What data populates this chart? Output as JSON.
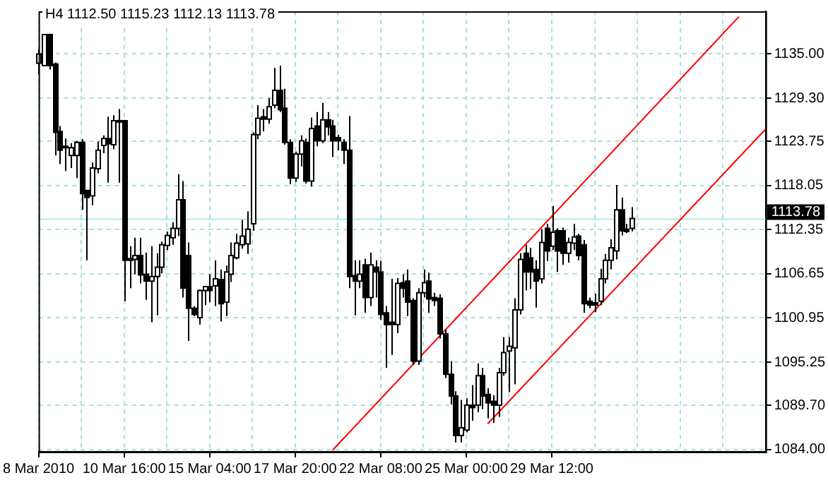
{
  "chart_data": {
    "type": "candlestick",
    "title": "H4 1112.50 1115.23 1112.13 1113.78",
    "color": "#000000",
    "categories": [
      "8 Mar 2010",
      null,
      null,
      null,
      null,
      null,
      null,
      null,
      null,
      null,
      null,
      null,
      null,
      null,
      null,
      null,
      "10 Mar 16:00",
      null,
      null,
      null,
      null,
      null,
      null,
      null,
      null,
      null,
      null,
      null,
      null,
      null,
      null,
      null,
      "15 Mar 04:00",
      null,
      null,
      null,
      null,
      null,
      null,
      null,
      null,
      null,
      null,
      null,
      null,
      null,
      null,
      null,
      "17 Mar 20:00",
      null,
      null,
      null,
      null,
      null,
      null,
      null,
      null,
      null,
      null,
      null,
      null,
      null,
      null,
      null,
      "22 Mar 08:00",
      null,
      null,
      null,
      null,
      null,
      null,
      null,
      null,
      null,
      null,
      null,
      null,
      null,
      null,
      null,
      "25 Mar 00:00",
      null,
      null,
      null,
      null,
      null,
      null,
      null,
      null,
      null,
      null,
      null,
      null,
      null,
      null,
      null,
      "29 Mar 12:00",
      null,
      null,
      null,
      null,
      null,
      null,
      null,
      null,
      null,
      null,
      null,
      null,
      null,
      null,
      null,
      null,
      null,
      null,
      null,
      null,
      null,
      null,
      null,
      null,
      null,
      null,
      null,
      null,
      null,
      null,
      null,
      null,
      null,
      null,
      null,
      null,
      null,
      null,
      null,
      null
    ],
    "ohlc": [
      [
        1133.8,
        1135.6,
        1132.4,
        1135.0
      ],
      [
        1133.5,
        1137.5,
        1133.5,
        1137.5
      ],
      [
        1137.5,
        1137.6,
        1133.0,
        1133.5
      ],
      [
        1133.7,
        1133.9,
        1121.9,
        1124.9
      ],
      [
        1125.0,
        1125.7,
        1120.8,
        1122.6
      ],
      [
        1122.9,
        1124.1,
        1119.9,
        1123.1
      ],
      [
        1121.9,
        1123.5,
        1120.3,
        1122.9
      ],
      [
        1121.9,
        1123.8,
        1119.0,
        1123.6
      ],
      [
        1123.6,
        1124.0,
        1114.9,
        1117.0
      ],
      [
        1117.4,
        1117.4,
        1108.4,
        1116.5
      ],
      [
        1116.7,
        1121.0,
        1115.5,
        1120.3
      ],
      [
        1120.2,
        1123.7,
        1119.6,
        1122.6
      ],
      [
        1123.2,
        1124.5,
        1122.2,
        1124.1
      ],
      [
        1124.1,
        1126.9,
        1118.4,
        1123.4
      ],
      [
        1123.3,
        1127.1,
        1122.7,
        1126.4
      ],
      [
        1126.3,
        1127.9,
        1118.4,
        1126.4
      ],
      [
        1126.4,
        1126.4,
        1103.1,
        1108.4
      ],
      [
        1108.4,
        1110.2,
        1104.8,
        1108.6
      ],
      [
        1108.5,
        1111.3,
        1106.6,
        1109.0
      ],
      [
        1109.0,
        1111.3,
        1105.4,
        1106.5
      ],
      [
        1106.6,
        1109.4,
        1103.3,
        1105.7
      ],
      [
        1105.7,
        1110.2,
        1100.4,
        1106.3
      ],
      [
        1106.3,
        1109.3,
        1101.3,
        1107.5
      ],
      [
        1107.5,
        1110.8,
        1106.7,
        1110.4
      ],
      [
        1110.3,
        1112.1,
        1109.7,
        1111.6
      ],
      [
        1111.3,
        1113.3,
        1110.4,
        1112.5
      ],
      [
        1112.5,
        1119.5,
        1111.5,
        1116.2
      ],
      [
        1116.2,
        1118.6,
        1103.6,
        1104.8
      ],
      [
        1109.0,
        1110.7,
        1098.0,
        1102.2
      ],
      [
        1102.2,
        1102.5,
        1101.2,
        1101.4
      ],
      [
        1101.0,
        1104.6,
        1100.1,
        1104.5
      ],
      [
        1104.5,
        1105.0,
        1102.6,
        1105.0
      ],
      [
        1105.0,
        1106.6,
        1103.0,
        1104.5
      ],
      [
        1105.1,
        1108.4,
        1102.5,
        1106.0
      ],
      [
        1105.9,
        1107.2,
        1100.5,
        1102.8
      ],
      [
        1103.0,
        1107.7,
        1101.2,
        1106.9
      ],
      [
        1106.6,
        1110.7,
        1105.6,
        1109.0
      ],
      [
        1108.7,
        1111.8,
        1108.5,
        1110.6
      ],
      [
        1110.4,
        1113.6,
        1109.9,
        1111.5
      ],
      [
        1110.5,
        1114.7,
        1109.2,
        1112.4
      ],
      [
        1113.1,
        1124.9,
        1112.2,
        1124.6
      ],
      [
        1124.6,
        1128.4,
        1124.0,
        1126.7
      ],
      [
        1126.9,
        1127.9,
        1125.0,
        1126.6
      ],
      [
        1126.6,
        1129.3,
        1126.0,
        1128.2
      ],
      [
        1128.4,
        1133.2,
        1128.0,
        1130.3
      ],
      [
        1130.3,
        1133.5,
        1127.5,
        1127.8
      ],
      [
        1128.0,
        1130.5,
        1123.3,
        1123.6
      ],
      [
        1123.6,
        1124.0,
        1118.2,
        1119.0
      ],
      [
        1119.0,
        1122.4,
        1118.5,
        1122.1
      ],
      [
        1122.1,
        1124.5,
        1120.5,
        1123.8
      ],
      [
        1123.6,
        1124.1,
        1118.3,
        1118.6
      ],
      [
        1118.6,
        1126.8,
        1117.9,
        1125.4
      ],
      [
        1125.7,
        1127.5,
        1123.1,
        1123.8
      ],
      [
        1123.8,
        1128.7,
        1123.5,
        1126.5
      ],
      [
        1126.5,
        1127.5,
        1124.5,
        1125.6
      ],
      [
        1125.7,
        1126.5,
        1121.7,
        1123.8
      ],
      [
        1124.2,
        1124.6,
        1122.6,
        1123.8
      ],
      [
        1123.6,
        1124.0,
        1120.8,
        1122.6
      ],
      [
        1122.6,
        1127.0,
        1104.8,
        1106.3
      ],
      [
        1106.4,
        1108.4,
        1101.3,
        1105.7
      ],
      [
        1105.7,
        1108.4,
        1104.8,
        1106.6
      ],
      [
        1107.8,
        1108.6,
        1101.6,
        1103.6
      ],
      [
        1103.6,
        1109.4,
        1102.5,
        1107.8
      ],
      [
        1107.5,
        1108.4,
        1103.6,
        1106.9
      ],
      [
        1106.9,
        1108.3,
        1100.7,
        1101.4
      ],
      [
        1101.6,
        1102.5,
        1094.5,
        1100.1
      ],
      [
        1100.4,
        1106.0,
        1096.2,
        1100.1
      ],
      [
        1100.1,
        1106.1,
        1099.0,
        1105.4
      ],
      [
        1105.5,
        1106.6,
        1103.6,
        1104.8
      ],
      [
        1105.7,
        1107.2,
        1101.2,
        1103.0
      ],
      [
        1103.2,
        1103.5,
        1094.9,
        1095.4
      ],
      [
        1095.4,
        1104.8,
        1094.9,
        1104.2
      ],
      [
        1104.2,
        1107.2,
        1103.6,
        1105.5
      ],
      [
        1105.7,
        1106.8,
        1101.6,
        1103.4
      ],
      [
        1103.6,
        1104.2,
        1102.5,
        1103.2
      ],
      [
        1103.5,
        1104.0,
        1098.3,
        1098.9
      ],
      [
        1098.9,
        1099.5,
        1093.2,
        1093.7
      ],
      [
        1093.7,
        1095.4,
        1089.8,
        1090.9
      ],
      [
        1090.9,
        1091.5,
        1084.9,
        1085.8
      ],
      [
        1085.8,
        1090.4,
        1084.9,
        1086.8
      ],
      [
        1086.5,
        1090.6,
        1086.2,
        1089.7
      ],
      [
        1089.7,
        1092.3,
        1087.7,
        1089.4
      ],
      [
        1089.7,
        1095.1,
        1088.8,
        1093.5
      ],
      [
        1093.5,
        1094.5,
        1089.2,
        1090.9
      ],
      [
        1091.1,
        1091.9,
        1088.0,
        1090.0
      ],
      [
        1090.2,
        1091.0,
        1087.4,
        1089.7
      ],
      [
        1089.7,
        1094.5,
        1088.2,
        1093.9
      ],
      [
        1093.9,
        1098.5,
        1093.5,
        1096.5
      ],
      [
        1096.7,
        1098.5,
        1091.4,
        1097.3
      ],
      [
        1097.1,
        1103.5,
        1092.4,
        1102.0
      ],
      [
        1102.0,
        1109.3,
        1101.4,
        1108.5
      ],
      [
        1109.3,
        1110.4,
        1104.5,
        1106.9
      ],
      [
        1108.7,
        1110.0,
        1104.7,
        1106.9
      ],
      [
        1107.2,
        1108.4,
        1102.3,
        1105.7
      ],
      [
        1106.0,
        1112.4,
        1105.4,
        1110.7
      ],
      [
        1112.5,
        1113.1,
        1108.3,
        1109.6
      ],
      [
        1110.2,
        1115.4,
        1109.7,
        1112.0
      ],
      [
        1112.2,
        1112.5,
        1106.9,
        1109.6
      ],
      [
        1112.2,
        1112.6,
        1107.8,
        1109.3
      ],
      [
        1109.3,
        1111.3,
        1108.1,
        1110.7
      ],
      [
        1110.6,
        1113.1,
        1109.7,
        1111.4
      ],
      [
        1111.5,
        1111.8,
        1108.4,
        1109.0
      ],
      [
        1110.4,
        1111.0,
        1101.6,
        1102.8
      ],
      [
        1103.1,
        1103.6,
        1102.2,
        1102.6
      ],
      [
        1102.9,
        1104.1,
        1101.7,
        1102.6
      ],
      [
        1103.1,
        1107.3,
        1102.6,
        1106.0
      ],
      [
        1106.0,
        1109.2,
        1105.4,
        1108.4
      ],
      [
        1108.4,
        1111.1,
        1107.2,
        1110.0
      ],
      [
        1109.6,
        1118.1,
        1108.5,
        1114.9
      ],
      [
        1114.9,
        1116.5,
        1111.6,
        1112.2
      ],
      [
        1112.4,
        1113.1,
        1111.9,
        1112.1
      ],
      [
        1112.5,
        1115.23,
        1112.13,
        1113.78
      ],
      null,
      null,
      null,
      null,
      null,
      null,
      null,
      null,
      null,
      null,
      null,
      null,
      null,
      null,
      null,
      null,
      null,
      null,
      null,
      null,
      null,
      null,
      null,
      null,
      null
    ],
    "colors": [
      "#ffffff",
      "#ffffff",
      "#000000",
      "#000000",
      "#000000",
      "#ffffff",
      "#ffffff",
      "#ffffff",
      "#000000",
      "#000000",
      "#ffffff",
      "#ffffff",
      "#ffffff",
      "#000000",
      "#ffffff",
      "#ffffff",
      "#000000",
      "#ffffff",
      "#ffffff",
      "#000000",
      "#000000",
      "#ffffff",
      "#ffffff",
      "#ffffff",
      "#ffffff",
      "#ffffff",
      "#ffffff",
      "#000000",
      "#000000",
      "#000000",
      "#ffffff",
      "#ffffff",
      "#000000",
      "#ffffff",
      "#000000",
      "#ffffff",
      "#ffffff",
      "#ffffff",
      "#ffffff",
      "#ffffff",
      "#ffffff",
      "#ffffff",
      "#000000",
      "#ffffff",
      "#ffffff",
      "#000000",
      "#000000",
      "#000000",
      "#ffffff",
      "#ffffff",
      "#000000",
      "#ffffff",
      "#000000",
      "#ffffff",
      "#000000",
      "#000000",
      "#000000",
      "#000000",
      "#000000",
      "#000000",
      "#ffffff",
      "#000000",
      "#ffffff",
      "#000000",
      "#000000",
      "#000000",
      "#000000",
      "#ffffff",
      "#000000",
      "#000000",
      "#000000",
      "#ffffff",
      "#ffffff",
      "#000000",
      "#000000",
      "#000000",
      "#000000",
      "#000000",
      "#000000",
      "#ffffff",
      "#ffffff",
      "#000000",
      "#ffffff",
      "#000000",
      "#000000",
      "#000000",
      "#ffffff",
      "#ffffff",
      "#ffffff",
      "#ffffff",
      "#ffffff",
      "#000000",
      "#000000",
      "#000000",
      "#ffffff",
      "#000000",
      "#ffffff",
      "#000000",
      "#000000",
      "#ffffff",
      "#ffffff",
      "#000000",
      "#000000",
      "#000000",
      "#000000",
      "#ffffff",
      "#ffffff",
      "#ffffff",
      "#ffffff",
      "#000000",
      "#000000",
      "#ffffff",
      null,
      null,
      null,
      null,
      null,
      null,
      null,
      null,
      null,
      null,
      null,
      null,
      null,
      null,
      null,
      null,
      null,
      null,
      null,
      null,
      null,
      null,
      null,
      null,
      null
    ],
    "series": [
      {
        "type": "line",
        "color": "#ff0000",
        "values": [
          null,
          null,
          null,
          null,
          null,
          null,
          null,
          null,
          null,
          null,
          null,
          null,
          null,
          null,
          null,
          null,
          null,
          null,
          null,
          null,
          null,
          null,
          null,
          null,
          null,
          null,
          null,
          null,
          null,
          null,
          null,
          null,
          null,
          null,
          null,
          null,
          null,
          null,
          null,
          null,
          null,
          null,
          null,
          null,
          null,
          null,
          null,
          null,
          null,
          null,
          null,
          null,
          null,
          null,
          null,
          1083.9,
          null,
          null,
          null,
          null,
          null,
          null,
          null,
          null,
          null,
          null,
          null,
          null,
          null,
          null,
          null,
          null,
          null,
          null,
          null,
          null,
          null,
          null,
          null,
          null,
          null,
          null,
          null,
          null,
          null,
          null,
          null,
          null,
          null,
          null,
          null,
          null,
          null,
          null,
          null,
          null,
          null,
          null,
          null,
          null,
          null,
          null,
          null,
          null,
          null,
          null,
          null,
          null,
          null,
          null,
          null,
          null,
          null,
          null,
          null,
          null,
          null,
          null,
          null,
          null,
          null,
          null,
          null,
          null,
          null,
          null,
          null,
          null,
          null,
          null,
          null,
          1139.8,
          null,
          null,
          null,
          null,
          null
        ]
      },
      {
        "type": "line",
        "color": "#ff0000",
        "values": [
          null,
          null,
          null,
          null,
          null,
          null,
          null,
          null,
          null,
          null,
          null,
          null,
          null,
          null,
          null,
          null,
          null,
          null,
          null,
          null,
          null,
          null,
          null,
          null,
          null,
          null,
          null,
          null,
          null,
          null,
          null,
          null,
          null,
          null,
          null,
          null,
          null,
          null,
          null,
          null,
          null,
          null,
          null,
          null,
          null,
          null,
          null,
          null,
          null,
          null,
          null,
          null,
          null,
          null,
          null,
          null,
          null,
          null,
          null,
          null,
          null,
          null,
          null,
          null,
          null,
          null,
          null,
          null,
          null,
          null,
          null,
          null,
          null,
          null,
          null,
          null,
          null,
          null,
          null,
          null,
          null,
          null,
          null,
          null,
          1087.3,
          null,
          null,
          null,
          null,
          null,
          null,
          null,
          null,
          null,
          null,
          null,
          null,
          null,
          null,
          null,
          null,
          null,
          null,
          null,
          null,
          null,
          null,
          null,
          null,
          null,
          null,
          null,
          null,
          null,
          null,
          null,
          null,
          null,
          null,
          null,
          null,
          null,
          null,
          null,
          null,
          null,
          null,
          null,
          null,
          null,
          null,
          null,
          null,
          null,
          null,
          null,
          1125.3
        ]
      }
    ],
    "ylim": [
      1083.7,
      1140.5
    ],
    "yticks": [
      {
        "value": 1084,
        "label": "1084.00"
      },
      {
        "value": 1089.7,
        "label": "1089.70"
      },
      {
        "value": 1095.25,
        "label": "1095.25"
      },
      {
        "value": 1100.95,
        "label": "1100.95"
      },
      {
        "value": 1106.65,
        "label": "1106.65"
      },
      {
        "value": 1112.35,
        "label": "1112.35"
      },
      {
        "value": 1118.05,
        "label": "1118.05"
      },
      {
        "value": 1123.75,
        "label": "1123.75"
      },
      {
        "value": 1129.3,
        "label": "1129.30"
      },
      {
        "value": 1135,
        "label": "1135.00"
      }
    ],
    "ref_lines": [
      {
        "axis": "y",
        "value": 1113.78,
        "label": "1113.78",
        "color": "#b0e8e8"
      }
    ],
    "grid": true,
    "legend": false,
    "line_style": "solid"
  }
}
